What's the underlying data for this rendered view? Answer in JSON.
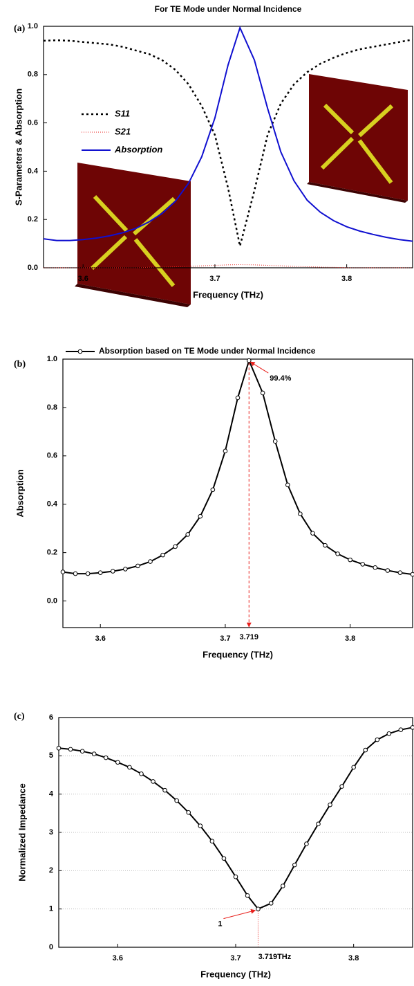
{
  "chart_data": [
    {
      "type": "line",
      "panel_label": "(a)",
      "title": "For TE Mode under Normal Incidence",
      "x_label": "Frequency (THz)",
      "y_label": "S-Parameters & Absorption",
      "x": [
        3.57,
        3.58,
        3.59,
        3.6,
        3.61,
        3.62,
        3.63,
        3.64,
        3.65,
        3.66,
        3.67,
        3.68,
        3.69,
        3.7,
        3.71,
        3.719,
        3.73,
        3.74,
        3.75,
        3.76,
        3.77,
        3.78,
        3.79,
        3.8,
        3.81,
        3.82,
        3.83,
        3.84,
        3.85
      ],
      "series": [
        {
          "name": "S11",
          "color": "#000000",
          "style": "dotted",
          "values": [
            0.94,
            0.942,
            0.94,
            0.935,
            0.93,
            0.925,
            0.915,
            0.9,
            0.885,
            0.86,
            0.82,
            0.76,
            0.67,
            0.55,
            0.33,
            0.09,
            0.32,
            0.55,
            0.68,
            0.76,
            0.81,
            0.845,
            0.87,
            0.89,
            0.905,
            0.915,
            0.925,
            0.935,
            0.945
          ]
        },
        {
          "name": "S21",
          "color": "#e8201c",
          "style": "dotted-fine",
          "values": [
            0,
            0,
            0,
            0,
            0,
            0,
            0,
            0,
            0.002,
            0.003,
            0.004,
            0.006,
            0.008,
            0.01,
            0.012,
            0.013,
            0.012,
            0.01,
            0.008,
            0.006,
            0.004,
            0.003,
            0.002,
            0,
            0,
            0,
            0,
            0,
            0
          ]
        },
        {
          "name": "Absorption",
          "color": "#1010d0",
          "style": "solid",
          "values": [
            0.12,
            0.113,
            0.113,
            0.117,
            0.123,
            0.132,
            0.145,
            0.163,
            0.19,
            0.225,
            0.275,
            0.35,
            0.46,
            0.62,
            0.84,
            0.994,
            0.86,
            0.66,
            0.48,
            0.36,
            0.28,
            0.23,
            0.195,
            0.17,
            0.152,
            0.138,
            0.126,
            0.117,
            0.11
          ]
        }
      ],
      "xlim": [
        3.57,
        3.85
      ],
      "xticks": [
        3.6,
        3.7,
        3.8
      ],
      "ylim": [
        0,
        1
      ],
      "yticks": [
        {
          "value": 0,
          "label": "0.0"
        },
        0.2,
        0.4,
        0.6,
        0.8,
        {
          "value": 1,
          "label": "1.0"
        }
      ],
      "legend": "left",
      "grid": false
    },
    {
      "type": "line",
      "panel_label": "(b)",
      "x_label": "Frequency (THz)",
      "y_label": "Absorption",
      "x": [
        3.57,
        3.58,
        3.59,
        3.6,
        3.61,
        3.62,
        3.63,
        3.64,
        3.65,
        3.66,
        3.67,
        3.68,
        3.69,
        3.7,
        3.71,
        3.719,
        3.73,
        3.74,
        3.75,
        3.76,
        3.77,
        3.78,
        3.79,
        3.8,
        3.81,
        3.82,
        3.83,
        3.84,
        3.85
      ],
      "series": [
        {
          "name": "Absorption based on TE Mode under Normal Incidence",
          "color": "#000000",
          "style": "solid",
          "marker": "circle",
          "values": [
            0.12,
            0.113,
            0.113,
            0.117,
            0.123,
            0.132,
            0.145,
            0.163,
            0.19,
            0.225,
            0.275,
            0.35,
            0.46,
            0.62,
            0.84,
            0.994,
            0.86,
            0.66,
            0.48,
            0.36,
            0.28,
            0.23,
            0.195,
            0.17,
            0.152,
            0.138,
            0.126,
            0.117,
            0.11
          ]
        }
      ],
      "xlim": [
        3.57,
        3.85
      ],
      "xticks": [
        3.6,
        3.7,
        3.8
      ],
      "ylim": [
        -0.11,
        1
      ],
      "yticks": [
        {
          "value": 0,
          "label": "0.0"
        },
        0.2,
        0.4,
        0.6,
        0.8,
        {
          "value": 1,
          "label": "1.0"
        }
      ],
      "legend": "top",
      "grid": false,
      "annotations": [
        {
          "text": "99.4%",
          "x": 3.719,
          "y": 0.994,
          "kind": "arrow"
        },
        {
          "text": "3.719",
          "x": 3.719,
          "y": 0.994,
          "kind": "drop-line"
        }
      ]
    },
    {
      "type": "line",
      "panel_label": "(c)",
      "x_label": "Frequency (THz)",
      "y_label": "Normalized Impedance",
      "x": [
        3.55,
        3.56,
        3.57,
        3.58,
        3.59,
        3.6,
        3.61,
        3.62,
        3.63,
        3.64,
        3.65,
        3.66,
        3.67,
        3.68,
        3.69,
        3.7,
        3.71,
        3.719,
        3.73,
        3.74,
        3.75,
        3.76,
        3.77,
        3.78,
        3.79,
        3.8,
        3.81,
        3.82,
        3.83,
        3.84,
        3.85
      ],
      "series": [
        {
          "color": "#000000",
          "style": "solid",
          "marker": "circle",
          "values": [
            5.2,
            5.17,
            5.12,
            5.05,
            4.95,
            4.83,
            4.7,
            4.53,
            4.33,
            4.1,
            3.83,
            3.52,
            3.17,
            2.77,
            2.32,
            1.84,
            1.35,
            1,
            1.15,
            1.6,
            2.15,
            2.7,
            3.22,
            3.72,
            4.2,
            4.7,
            5.15,
            5.42,
            5.58,
            5.68,
            5.74
          ]
        }
      ],
      "xlim": [
        3.55,
        3.85
      ],
      "xticks": [
        3.6,
        3.7,
        3.8
      ],
      "ylim": [
        0,
        6
      ],
      "yticks": [
        0,
        1,
        2,
        3,
        4,
        5,
        6
      ],
      "grid": true,
      "annotations": [
        {
          "text": "1",
          "x": 3.719,
          "y": 1,
          "kind": "arrow"
        },
        {
          "text": "3.719THz",
          "x": 3.719,
          "y": 1,
          "kind": "drop-line"
        }
      ]
    }
  ]
}
